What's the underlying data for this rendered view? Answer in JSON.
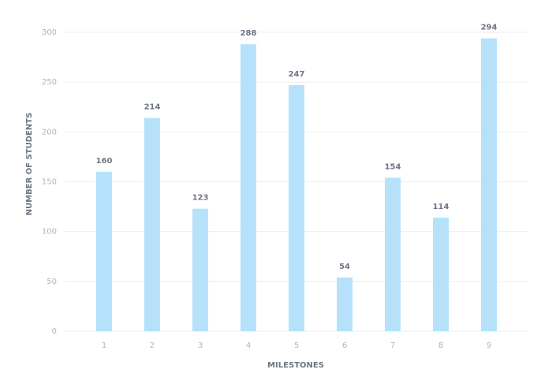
{
  "chart_data": {
    "type": "bar",
    "x_label": "MILESTONES",
    "y_label": "NUMBER OF STUDENTS",
    "categories": [
      "1",
      "2",
      "3",
      "4",
      "5",
      "6",
      "7",
      "8",
      "9"
    ],
    "values": [
      160,
      214,
      123,
      288,
      247,
      54,
      154,
      114,
      294
    ],
    "color": "#b5e2fa",
    "ylim": [
      0,
      300
    ],
    "yticks": [
      0,
      50,
      100,
      150,
      200,
      250,
      300
    ],
    "grid": true
  }
}
